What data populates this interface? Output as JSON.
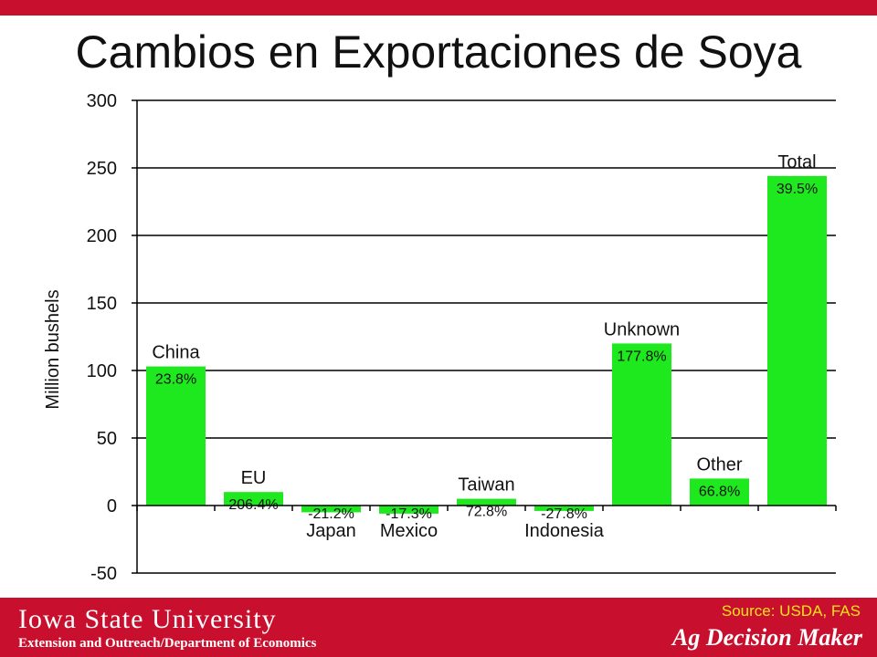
{
  "slide": {
    "title": "Cambios en Exportaciones de Soya"
  },
  "footer": {
    "university": "Iowa State University",
    "department": "Extension and Outreach/Department of Economics",
    "source": "Source: USDA, FAS",
    "brand": "Ag Decision Maker"
  },
  "colors": {
    "bar": "#1ee81e",
    "accent": "#c8102e",
    "source_text": "#f2e21a"
  },
  "chart_data": {
    "type": "bar",
    "ylabel": "Million bushels",
    "ylim": [
      -50,
      300
    ],
    "yticks": [
      -50,
      0,
      50,
      100,
      150,
      200,
      250,
      300
    ],
    "grid": true,
    "categories": [
      "China",
      "EU",
      "Japan",
      "Mexico",
      "Taiwan",
      "Indonesia",
      "Unknown",
      "Other",
      "Total"
    ],
    "values": [
      103,
      10,
      -5,
      -6,
      5,
      -4,
      120,
      20,
      244
    ],
    "data_labels": [
      "23.8%",
      "206.4%",
      "-21.2%",
      "-17.3%",
      "72.8%",
      "-27.8%",
      "177.8%",
      "66.8%",
      "39.5%"
    ]
  }
}
